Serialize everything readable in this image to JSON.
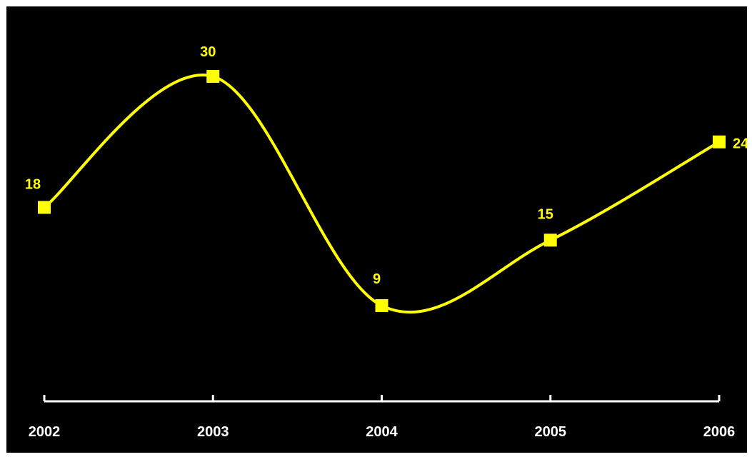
{
  "chart_data": {
    "type": "line",
    "categories": [
      "2002",
      "2003",
      "2004",
      "2005",
      "2006"
    ],
    "series": [
      {
        "values": [
          18,
          30,
          9,
          15,
          24
        ]
      }
    ],
    "data_labels": [
      "18",
      "30",
      "9",
      "15",
      "24"
    ],
    "title": "",
    "xlabel": "",
    "ylabel": "",
    "y_axis_visible": false,
    "grid": false,
    "legend": "none",
    "smooth": true,
    "marker": "square"
  },
  "colors": {
    "background": "#000000",
    "line": "#ffff00",
    "marker": "#ffff00",
    "data_label": "#ffff00",
    "axis": "#ffffff",
    "tick_label": "#ffffff"
  }
}
